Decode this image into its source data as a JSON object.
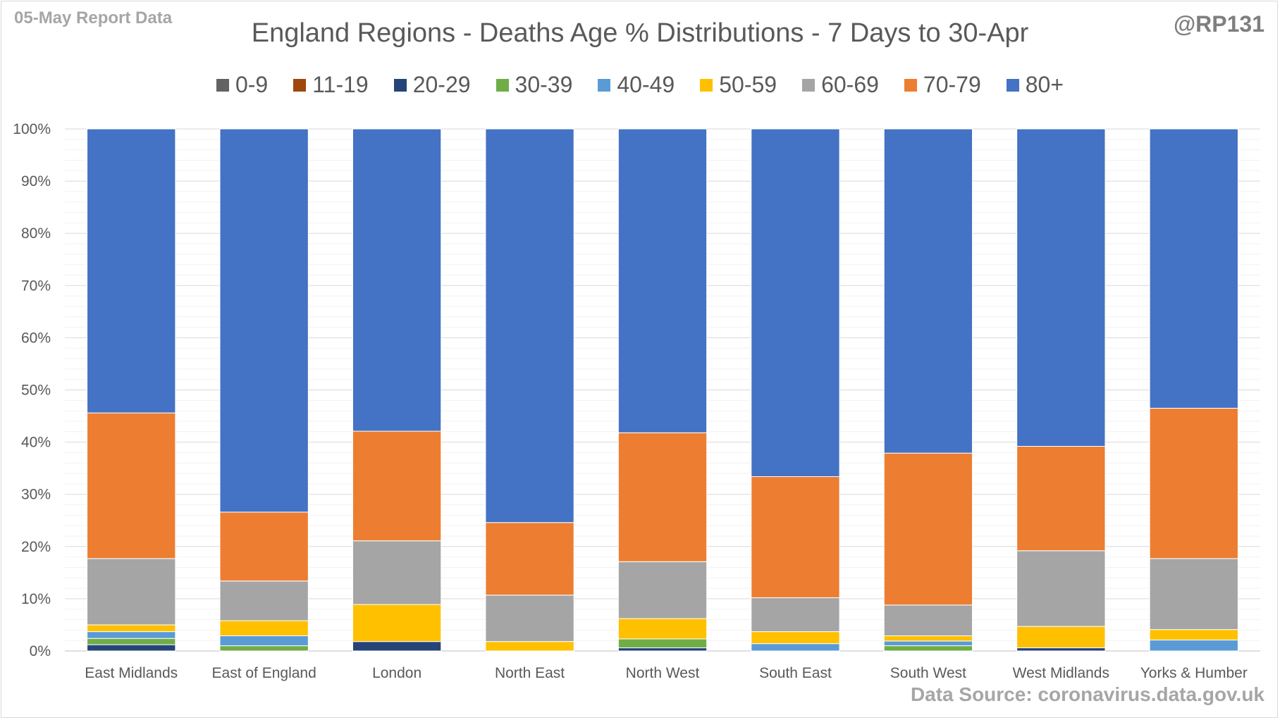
{
  "corner_left": "05-May Report Data",
  "corner_right": "@RP131",
  "source": "Data Source: coronavirus.data.gov.uk",
  "chart_data": {
    "type": "bar",
    "stacked": true,
    "title": "England Regions - Deaths Age % Distributions - 7 Days to 30-Apr",
    "legend_position": "top",
    "grid": true,
    "ylim": [
      0,
      100
    ],
    "yticks": [
      "0%",
      "10%",
      "20%",
      "30%",
      "40%",
      "50%",
      "60%",
      "70%",
      "80%",
      "90%",
      "100%"
    ],
    "categories": [
      "East Midlands",
      "East of England",
      "London",
      "North East",
      "North West",
      "South East",
      "South West",
      "West Midlands",
      "Yorks & Humber"
    ],
    "series": [
      {
        "name": "0-9",
        "color": "#636363",
        "values": [
          0,
          0,
          0,
          0,
          0,
          0,
          0,
          0,
          0
        ]
      },
      {
        "name": "11-19",
        "color": "#9e480e",
        "values": [
          0,
          0,
          0,
          0,
          0,
          0,
          0,
          0,
          0
        ]
      },
      {
        "name": "20-29",
        "color": "#264478",
        "values": [
          1.2,
          0,
          1.8,
          0,
          0.6,
          0,
          0,
          0.6,
          0
        ]
      },
      {
        "name": "30-39",
        "color": "#70ad47",
        "values": [
          1.2,
          1.0,
          0,
          0,
          1.7,
          0,
          1.0,
          0,
          0
        ]
      },
      {
        "name": "40-49",
        "color": "#5b9bd5",
        "values": [
          1.3,
          1.9,
          0,
          0,
          0,
          1.4,
          0.9,
          0,
          2.1
        ]
      },
      {
        "name": "50-59",
        "color": "#ffc000",
        "values": [
          1.3,
          2.9,
          7.1,
          1.8,
          3.9,
          2.3,
          1.0,
          4.1,
          2.0
        ]
      },
      {
        "name": "60-69",
        "color": "#a5a5a5",
        "values": [
          12.7,
          7.6,
          12.2,
          8.9,
          10.9,
          6.5,
          5.9,
          14.5,
          13.6
        ]
      },
      {
        "name": "70-79",
        "color": "#ed7d31",
        "values": [
          27.9,
          13.2,
          21.0,
          13.9,
          24.7,
          23.2,
          29.1,
          20.0,
          28.8
        ]
      },
      {
        "name": "80+",
        "color": "#4472c4",
        "values": [
          54.4,
          73.4,
          57.9,
          75.4,
          58.2,
          66.6,
          62.1,
          60.8,
          53.5
        ]
      }
    ]
  }
}
